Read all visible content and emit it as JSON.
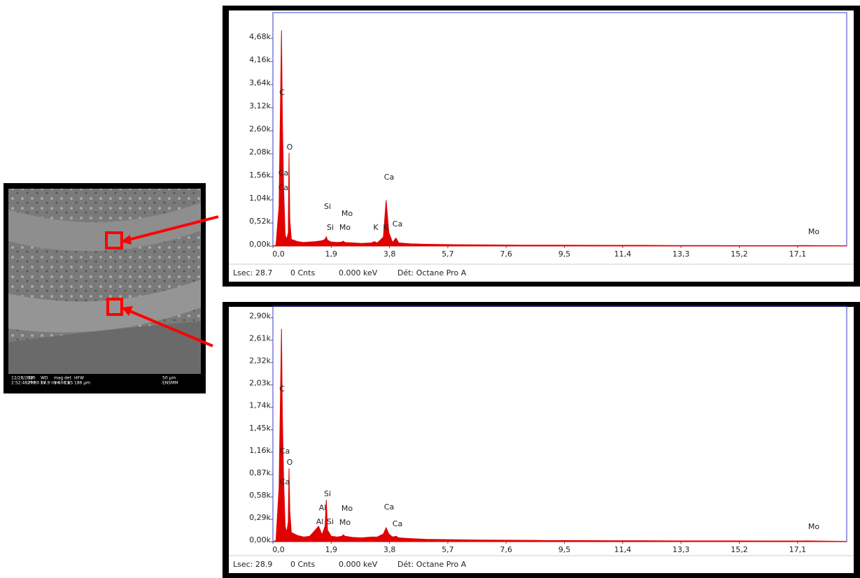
{
  "sem_image": {
    "info": [
      "12/28/2020",
      "HV",
      "WD",
      "mag",
      "det",
      "HFW",
      "50 µm",
      "2:52:48 PM",
      "27.80 kV",
      "14.9 mm",
      "1 600 x",
      "CBS",
      "186 µm",
      "ENSMM"
    ]
  },
  "chart_data": [
    {
      "type": "area",
      "x": [
        0,
        0.1,
        0.2,
        0.25,
        0.28,
        0.31,
        0.35,
        0.4,
        0.45,
        0.5,
        0.525,
        0.55,
        0.6,
        0.8,
        1.0,
        1.2,
        1.4,
        1.6,
        1.7,
        1.74,
        1.78,
        1.9,
        2.1,
        2.25,
        2.29,
        2.35,
        2.6,
        2.9,
        3.2,
        3.31,
        3.4,
        3.6,
        3.69,
        3.78,
        3.9,
        4.01,
        4.1,
        4.5,
        5,
        6,
        7,
        8,
        9,
        10,
        11,
        12,
        13,
        14,
        15,
        16,
        17,
        17.4,
        18,
        18.7
      ],
      "series": [
        {
          "color": "#e00000",
          "values": [
            0,
            20,
            900,
            3400,
            4860,
            2800,
            1300,
            250,
            150,
            300,
            2100,
            600,
            150,
            100,
            80,
            90,
            100,
            120,
            150,
            210,
            130,
            90,
            80,
            90,
            110,
            80,
            70,
            60,
            70,
            100,
            70,
            200,
            1030,
            300,
            80,
            180,
            70,
            50,
            40,
            30,
            25,
            20,
            20,
            18,
            15,
            15,
            12,
            12,
            10,
            10,
            10,
            12,
            8,
            5
          ]
        }
      ],
      "xlim": [
        0,
        18.7
      ],
      "ylim": [
        0,
        5260
      ],
      "xticks": [
        {
          "value": 0,
          "label": "0,0"
        },
        {
          "value": 1.9,
          "label": "1,9"
        },
        {
          "value": 3.8,
          "label": "3,8"
        },
        {
          "value": 5.7,
          "label": "5,7"
        },
        {
          "value": 7.6,
          "label": "7,6"
        },
        {
          "value": 9.5,
          "label": "9,5"
        },
        {
          "value": 11.4,
          "label": "11,4"
        },
        {
          "value": 13.3,
          "label": "13,3"
        },
        {
          "value": 15.2,
          "label": "15,2"
        },
        {
          "value": 17.1,
          "label": "17,1"
        }
      ],
      "yticks": [
        {
          "value": 0,
          "label": "0,00k"
        },
        {
          "value": 520,
          "label": "0,52k"
        },
        {
          "value": 1040,
          "label": "1,04k"
        },
        {
          "value": 1560,
          "label": "1,56k"
        },
        {
          "value": 2080,
          "label": "2,08k"
        },
        {
          "value": 2600,
          "label": "2,60k"
        },
        {
          "value": 3120,
          "label": "3,12k"
        },
        {
          "value": 3640,
          "label": "3,64k"
        },
        {
          "value": 4160,
          "label": "4,16k"
        },
        {
          "value": 4680,
          "label": "4,68k"
        }
      ],
      "annotations": [
        "C",
        "O",
        "Ca",
        "Ca",
        "Si",
        "Mo",
        "Si",
        "Mo",
        "K",
        "K",
        "Ca",
        "Ca",
        "Mo"
      ],
      "footer": [
        "Lsec: 28.7",
        "0 Cnts",
        "0.000 keV",
        "Dét: Octane Pro A"
      ]
    },
    {
      "type": "area",
      "x": [
        0,
        0.1,
        0.2,
        0.25,
        0.28,
        0.31,
        0.35,
        0.4,
        0.45,
        0.5,
        0.525,
        0.55,
        0.6,
        0.8,
        1.0,
        1.2,
        1.49,
        1.6,
        1.7,
        1.74,
        1.78,
        1.9,
        2.1,
        2.25,
        2.29,
        2.35,
        2.6,
        2.9,
        3.2,
        3.31,
        3.4,
        3.6,
        3.69,
        3.78,
        3.9,
        4.01,
        4.1,
        4.5,
        5,
        6,
        7,
        8,
        9,
        10,
        11,
        12,
        13,
        14,
        15,
        16,
        17,
        17.4,
        18,
        18.7
      ],
      "series": [
        {
          "color": "#e00000",
          "values": [
            0,
            15,
            700,
            2000,
            2755,
            1600,
            800,
            200,
            120,
            250,
            949,
            400,
            120,
            80,
            60,
            70,
            200,
            90,
            200,
            542,
            150,
            70,
            60,
            70,
            90,
            70,
            55,
            50,
            60,
            60,
            60,
            100,
            180,
            100,
            60,
            70,
            50,
            40,
            30,
            25,
            20,
            18,
            15,
            15,
            12,
            12,
            10,
            10,
            10,
            9,
            9,
            10,
            7,
            4
          ]
        }
      ],
      "xlim": [
        0,
        18.7
      ],
      "ylim": [
        0,
        3050
      ],
      "xticks": [
        {
          "value": 0,
          "label": "0,0"
        },
        {
          "value": 1.9,
          "label": "1,9"
        },
        {
          "value": 3.8,
          "label": "3,8"
        },
        {
          "value": 5.7,
          "label": "5,7"
        },
        {
          "value": 7.6,
          "label": "7,6"
        },
        {
          "value": 9.5,
          "label": "9,5"
        },
        {
          "value": 11.4,
          "label": "11,4"
        },
        {
          "value": 13.3,
          "label": "13,3"
        },
        {
          "value": 15.2,
          "label": "15,2"
        },
        {
          "value": 17.1,
          "label": "17,1"
        }
      ],
      "yticks": [
        {
          "value": 0,
          "label": "0,00k"
        },
        {
          "value": 290,
          "label": "0,29k"
        },
        {
          "value": 580,
          "label": "0,58k"
        },
        {
          "value": 870,
          "label": "0,87k"
        },
        {
          "value": 1160,
          "label": "1,16k"
        },
        {
          "value": 1450,
          "label": "1,45k"
        },
        {
          "value": 1740,
          "label": "1,74k"
        },
        {
          "value": 2030,
          "label": "2,03k"
        },
        {
          "value": 2320,
          "label": "2,32k"
        },
        {
          "value": 2610,
          "label": "2,61k"
        },
        {
          "value": 2900,
          "label": "2,90k"
        }
      ],
      "annotations": [
        "C",
        "Ca",
        "O",
        "Ca",
        "Si",
        "Al",
        "Mo",
        "Ca",
        "Al",
        "Si",
        "Mo",
        "Ca",
        "Mo"
      ],
      "footer": [
        "Lsec: 28.9",
        "0 Cnts",
        "0.000 keV",
        "Dét: Octane Pro A"
      ]
    }
  ]
}
